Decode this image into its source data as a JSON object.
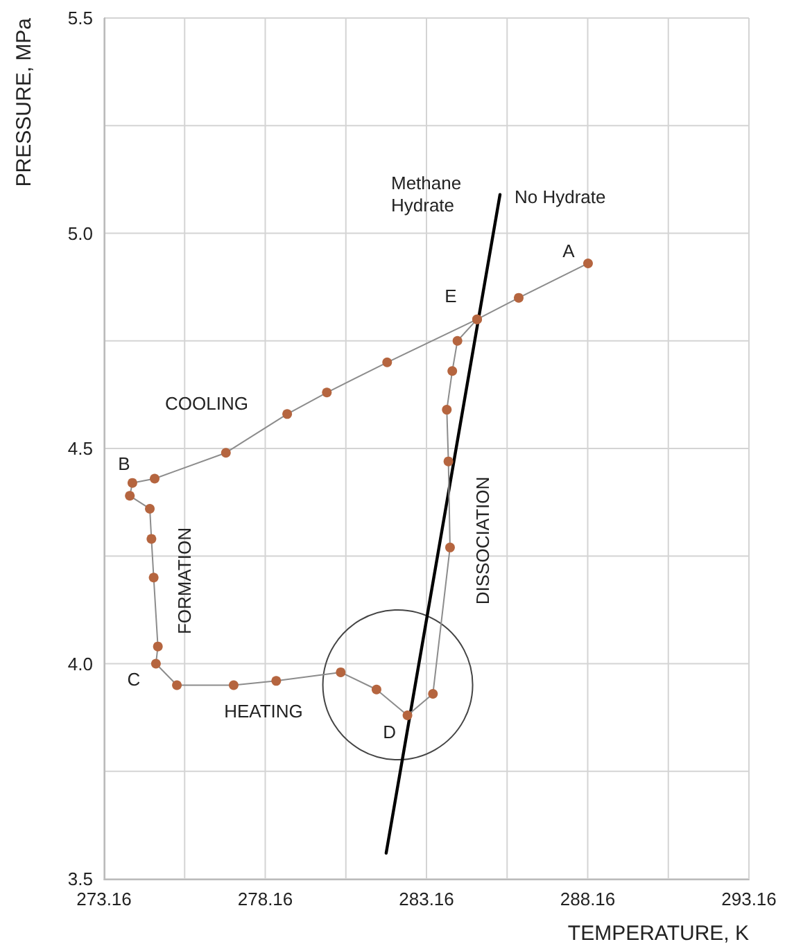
{
  "chart_data": {
    "type": "line",
    "xlabel": "TEMPERATURE, K",
    "ylabel": "PRESSURE, MPa",
    "xlim": [
      273.16,
      293.16
    ],
    "xticks": [
      273.16,
      {
        "value": 275.66,
        "label": null
      },
      278.16,
      {
        "value": 280.66,
        "label": null
      },
      283.16,
      {
        "value": 285.66,
        "label": null
      },
      288.16,
      {
        "value": 290.66,
        "label": null
      },
      293.16
    ],
    "ylim": [
      3.5,
      5.5
    ],
    "yticks": [
      3.5,
      {
        "value": 3.75,
        "label": null
      },
      {
        "value": 4,
        "label": "4.0"
      },
      {
        "value": 4.25,
        "label": null
      },
      4.5,
      {
        "value": 4.75,
        "label": null
      },
      {
        "value": 5,
        "label": "5.0"
      },
      {
        "value": 5.25,
        "label": null
      },
      5.5
    ],
    "grid": true,
    "marker": "circle",
    "line_style": "solid",
    "series": [
      {
        "color": "#b5653f",
        "x": [
          288.17,
          286.02,
          284.73,
          281.94,
          280.07,
          278.84,
          276.94,
          274.73,
          274.04,
          273.96,
          274.58,
          274.63,
          274.7,
          274.83,
          274.77,
          275.42,
          277.18,
          278.5,
          280.5,
          281.61,
          282.57,
          283.36,
          283.89,
          283.84,
          283.79,
          283.96,
          284.12,
          284.73
        ],
        "values": [
          4.93,
          4.85,
          4.8,
          4.7,
          4.63,
          4.58,
          4.49,
          4.43,
          4.42,
          4.39,
          4.36,
          4.29,
          4.2,
          4.04,
          4.0,
          3.95,
          3.95,
          3.96,
          3.98,
          3.94,
          3.88,
          3.93,
          4.27,
          4.47,
          4.59,
          4.68,
          4.75,
          4.8
        ]
      },
      {
        "color": "#000000",
        "marker": "none",
        "x": [
          281.91,
          285.44
        ],
        "values": [
          3.56,
          5.09
        ]
      }
    ],
    "annotations": [
      {
        "text": "A",
        "x": 288.17,
        "y": 4.93
      },
      {
        "text": "E",
        "x": 284.73,
        "y": 4.8
      },
      {
        "text": "B",
        "x": 274.04,
        "y": 4.42
      },
      {
        "text": "C",
        "x": 274.77,
        "y": 4.0
      },
      {
        "text": "D",
        "x": 282.57,
        "y": 3.88
      },
      "COOLING",
      "HEATING",
      "FORMATION",
      "DISSOCIATION",
      "Methane\nHydrate",
      "No Hydrate"
    ]
  }
}
